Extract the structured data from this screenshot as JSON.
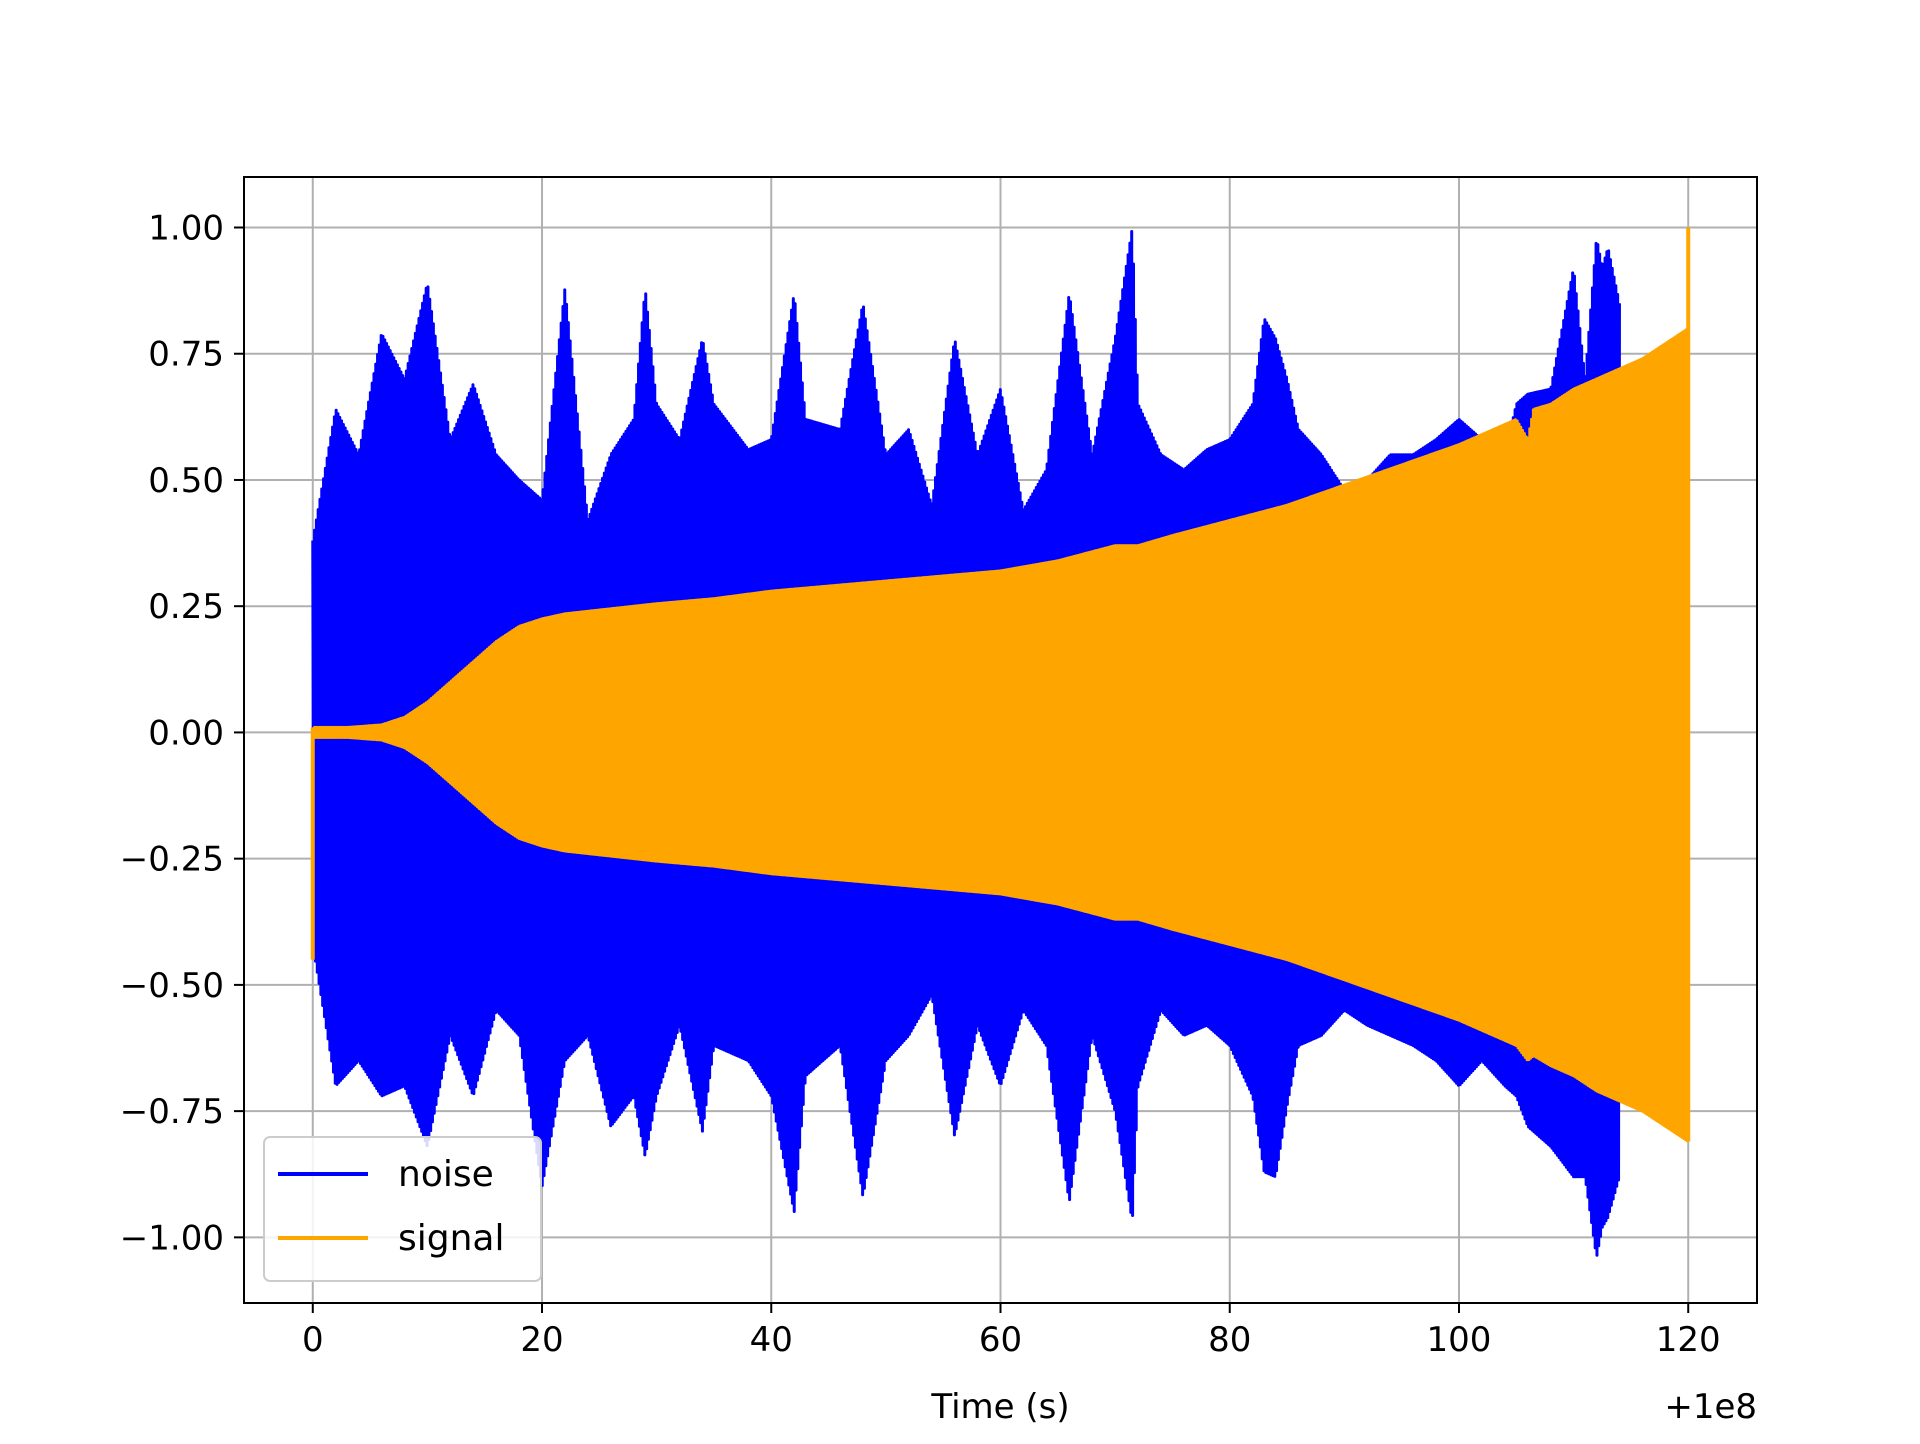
{
  "chart_data": {
    "type": "line",
    "xlabel": "Time (s)",
    "ylabel": "",
    "x_offset_label": "+1e8",
    "xlim": [
      -6,
      126
    ],
    "ylim": [
      -1.13,
      1.1
    ],
    "xticks": [
      0,
      20,
      40,
      60,
      80,
      100,
      120
    ],
    "xtick_labels": [
      "0",
      "20",
      "40",
      "60",
      "80",
      "100",
      "120"
    ],
    "yticks": [
      1.0,
      0.75,
      0.5,
      0.25,
      0.0,
      -0.25,
      -0.5,
      -0.75,
      -1.0
    ],
    "ytick_labels": [
      "1.00",
      "0.75",
      "0.50",
      "0.25",
      "0.00",
      "−0.25",
      "−0.50",
      "−0.75",
      "−1.00"
    ],
    "grid": true,
    "legend_position": "lower-left",
    "series": [
      {
        "name": "noise",
        "color": "#0000ff",
        "envelope": {
          "x": [
            0,
            2,
            4,
            6,
            8,
            10,
            12,
            14,
            16,
            18,
            20,
            22,
            24,
            26,
            28,
            29,
            30,
            32,
            34,
            35,
            38,
            40,
            42,
            43,
            46,
            48,
            50,
            52,
            54,
            56,
            58,
            60,
            62,
            64,
            66,
            68,
            70,
            71.5,
            72,
            74,
            76,
            78,
            80,
            82,
            83,
            84,
            85,
            86,
            88,
            90,
            92,
            94,
            96,
            98,
            100,
            102,
            104,
            105,
            106,
            108,
            110,
            111,
            112,
            112.5,
            113,
            114
          ],
          "upper": [
            0.38,
            0.64,
            0.55,
            0.79,
            0.7,
            0.89,
            0.58,
            0.69,
            0.55,
            0.5,
            0.46,
            0.88,
            0.42,
            0.55,
            0.62,
            0.88,
            0.65,
            0.58,
            0.78,
            0.65,
            0.56,
            0.58,
            0.87,
            0.62,
            0.6,
            0.85,
            0.55,
            0.6,
            0.45,
            0.78,
            0.55,
            0.68,
            0.44,
            0.52,
            0.87,
            0.55,
            0.78,
            1.0,
            0.65,
            0.55,
            0.52,
            0.56,
            0.58,
            0.65,
            0.82,
            0.78,
            0.7,
            0.6,
            0.55,
            0.48,
            0.5,
            0.55,
            0.55,
            0.58,
            0.62,
            0.58,
            0.55,
            0.65,
            0.67,
            0.68,
            0.92,
            0.7,
            0.98,
            0.92,
            0.96,
            0.85
          ],
          "lower": [
            -0.42,
            -0.7,
            -0.65,
            -0.72,
            -0.7,
            -0.82,
            -0.6,
            -0.72,
            -0.55,
            -0.6,
            -0.9,
            -0.65,
            -0.6,
            -0.78,
            -0.72,
            -0.84,
            -0.72,
            -0.58,
            -0.79,
            -0.62,
            -0.65,
            -0.72,
            -0.95,
            -0.68,
            -0.62,
            -0.92,
            -0.65,
            -0.6,
            -0.52,
            -0.8,
            -0.58,
            -0.7,
            -0.55,
            -0.62,
            -0.93,
            -0.6,
            -0.75,
            -0.97,
            -0.7,
            -0.55,
            -0.6,
            -0.58,
            -0.62,
            -0.72,
            -0.87,
            -0.88,
            -0.74,
            -0.62,
            -0.6,
            -0.55,
            -0.58,
            -0.6,
            -0.62,
            -0.65,
            -0.7,
            -0.65,
            -0.7,
            -0.72,
            -0.78,
            -0.82,
            -0.88,
            -0.88,
            -1.04,
            -0.98,
            -0.96,
            -0.88
          ]
        }
      },
      {
        "name": "signal",
        "color": "#ffa500",
        "envelope": {
          "x": [
            0,
            3,
            6,
            8,
            10,
            12,
            14,
            16,
            18,
            20,
            22,
            24,
            26,
            28,
            30,
            35,
            40,
            45,
            50,
            55,
            60,
            65,
            70,
            72,
            73.5,
            75,
            80,
            85,
            90,
            95,
            100,
            103,
            105,
            106,
            106.5,
            108,
            110,
            112,
            114,
            116,
            118,
            120
          ],
          "upper": [
            0.01,
            0.01,
            0.015,
            0.03,
            0.06,
            0.1,
            0.14,
            0.18,
            0.21,
            0.225,
            0.235,
            0.24,
            0.245,
            0.25,
            0.255,
            0.265,
            0.28,
            0.29,
            0.3,
            0.31,
            0.32,
            0.34,
            0.37,
            0.37,
            0.38,
            0.39,
            0.42,
            0.45,
            0.49,
            0.53,
            0.57,
            0.6,
            0.62,
            0.58,
            0.64,
            0.65,
            0.68,
            0.7,
            0.72,
            0.74,
            0.77,
            0.8
          ],
          "lower": [
            -0.01,
            -0.01,
            -0.015,
            -0.03,
            -0.06,
            -0.1,
            -0.14,
            -0.18,
            -0.21,
            -0.225,
            -0.235,
            -0.24,
            -0.245,
            -0.25,
            -0.255,
            -0.265,
            -0.28,
            -0.29,
            -0.3,
            -0.31,
            -0.32,
            -0.34,
            -0.37,
            -0.37,
            -0.38,
            -0.39,
            -0.42,
            -0.45,
            -0.49,
            -0.53,
            -0.57,
            -0.6,
            -0.62,
            -0.65,
            -0.64,
            -0.66,
            -0.68,
            -0.71,
            -0.73,
            -0.75,
            -0.78,
            -0.81
          ]
        },
        "spikes": [
          {
            "x": 0,
            "y_min": -0.45,
            "y_max": 0.01
          },
          {
            "x": 120,
            "y_min": -0.81,
            "y_max": 1.0
          }
        ]
      }
    ]
  }
}
